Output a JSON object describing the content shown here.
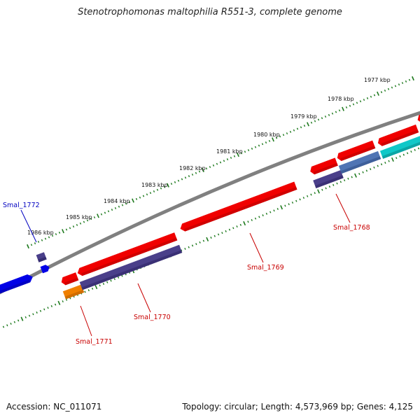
{
  "header": {
    "title": "Stenotrophomonas maltophilia R551-3, complete genome"
  },
  "footer": {
    "accession": "Accession: NC_011071",
    "summary": "Topology: circular; Length: 4,573,969 bp; Genes: 4,125"
  },
  "colors": {
    "backbone": "#808080",
    "tick": "#1e7a1e",
    "forward_gene": "#f00000",
    "reverse_gene": "#4a3f8a",
    "blue_gene": "#0000e6",
    "orange_gene": "#f08000",
    "cyan_gene": "#10c8c8",
    "steel_gene": "#4f74b4",
    "label_red": "#c80000",
    "label_blue": "#0000c0"
  },
  "ruler": {
    "ticks": [
      "1977 kbp",
      "1978 kbp",
      "1979 kbp",
      "1980 kbp",
      "1981 kbp",
      "1982 kbp",
      "1983 kbp",
      "1984 kbp",
      "1985 kbp",
      "1986 kbp"
    ]
  },
  "genes": [
    {
      "id": "Smal_1768",
      "label": "Smal_1768"
    },
    {
      "id": "Smal_1769",
      "label": "Smal_1769"
    },
    {
      "id": "Smal_1770",
      "label": "Smal_1770"
    },
    {
      "id": "Smal_1771",
      "label": "Smal_1771"
    },
    {
      "id": "Smal_1772",
      "label": "Smal_1772"
    }
  ]
}
